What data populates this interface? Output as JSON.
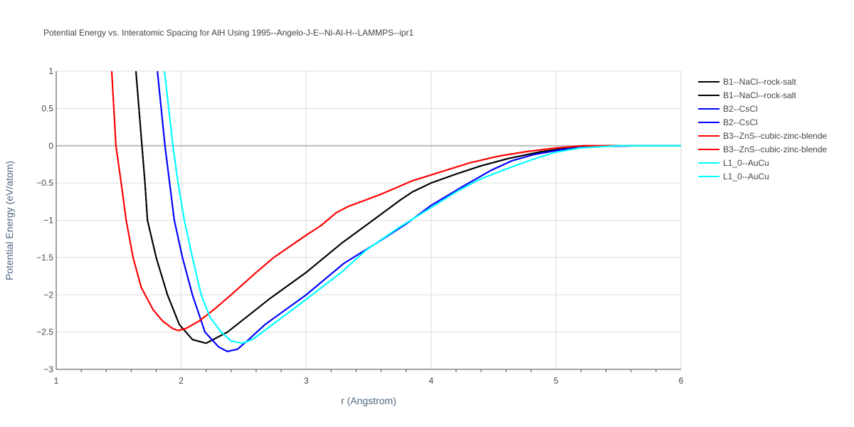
{
  "chart_data": {
    "type": "line",
    "title": "Potential Energy vs. Interatomic Spacing for AlH Using 1995--Angelo-J-E--Ni-Al-H--LAMMPS--ipr1",
    "xlabel": "r (Angstrom)",
    "ylabel": "Potential Energy (eV/atom)",
    "xlim": [
      1,
      6
    ],
    "ylim": [
      -3,
      1
    ],
    "xticks": [
      "1",
      "2",
      "3",
      "4",
      "5",
      "6"
    ],
    "yticks": [
      "1",
      "0.5",
      "0",
      "−0.5",
      "−1",
      "−1.5",
      "−2",
      "−2.5",
      "−3"
    ],
    "grid": true,
    "legend_placement": "right",
    "series": [
      {
        "name": "B1--NaCl--rock-salt",
        "color": "#000000",
        "x": [
          1.638,
          1.71,
          1.73,
          1.8,
          1.89,
          1.985,
          2.09,
          2.2,
          2.37,
          2.71,
          3.0,
          3.29,
          3.51,
          3.76,
          3.85,
          4.0,
          4.2,
          4.4,
          4.62,
          4.88,
          5.1,
          5.4,
          6.0
        ],
        "y": [
          1,
          -0.5,
          -1,
          -1.5,
          -2,
          -2.4,
          -2.6,
          -2.65,
          -2.5,
          -2.05,
          -1.7,
          -1.3,
          -1.03,
          -0.72,
          -0.62,
          -0.5,
          -0.38,
          -0.27,
          -0.17,
          -0.08,
          -0.03,
          0,
          0
        ]
      },
      {
        "name": "B1--NaCl--rock-salt",
        "color": "#000000",
        "x": [
          1.638,
          1.71,
          1.73,
          1.8,
          1.89,
          1.985,
          2.09,
          2.2,
          2.37,
          2.71,
          3.0,
          3.29,
          3.51,
          3.76,
          3.85,
          4.0,
          4.2,
          4.4,
          4.62,
          4.88,
          5.1,
          5.4,
          6.0
        ],
        "y": [
          1,
          -0.5,
          -1,
          -1.5,
          -2,
          -2.4,
          -2.6,
          -2.65,
          -2.5,
          -2.05,
          -1.7,
          -1.3,
          -1.03,
          -0.72,
          -0.62,
          -0.5,
          -0.38,
          -0.27,
          -0.17,
          -0.08,
          -0.03,
          0,
          0
        ]
      },
      {
        "name": "B2--CsCl",
        "color": "#0000ff",
        "x": [
          1.81,
          1.87,
          1.945,
          2.01,
          2.09,
          2.19,
          2.3,
          2.37,
          2.45,
          2.54,
          2.67,
          3.0,
          3.3,
          3.57,
          3.8,
          4.0,
          4.25,
          4.48,
          4.65,
          4.82,
          5.05,
          5.28,
          5.68,
          6.0
        ],
        "y": [
          1,
          0,
          -1,
          -1.5,
          -2,
          -2.5,
          -2.7,
          -2.76,
          -2.73,
          -2.6,
          -2.4,
          -2.0,
          -1.58,
          -1.3,
          -1.05,
          -0.8,
          -0.55,
          -0.33,
          -0.2,
          -0.12,
          -0.05,
          -0.01,
          0,
          0
        ]
      },
      {
        "name": "B2--CsCl",
        "color": "#0000ff",
        "x": [
          1.81,
          1.87,
          1.945,
          2.01,
          2.09,
          2.19,
          2.3,
          2.37,
          2.45,
          2.54,
          2.67,
          3.0,
          3.3,
          3.57,
          3.8,
          4.0,
          4.25,
          4.48,
          4.65,
          4.82,
          5.05,
          5.28,
          5.68,
          6.0
        ],
        "y": [
          1,
          0,
          -1,
          -1.5,
          -2,
          -2.5,
          -2.7,
          -2.76,
          -2.73,
          -2.6,
          -2.4,
          -2.0,
          -1.58,
          -1.3,
          -1.05,
          -0.8,
          -0.55,
          -0.33,
          -0.2,
          -0.12,
          -0.05,
          -0.01,
          0,
          0
        ]
      },
      {
        "name": "B3--ZnS--cubic-zinc-blende",
        "color": "#ff0000",
        "x": [
          1.444,
          1.478,
          1.52,
          1.56,
          1.615,
          1.68,
          1.775,
          1.85,
          1.93,
          1.975,
          2.04,
          2.145,
          2.26,
          2.4,
          2.6,
          2.74,
          3.0,
          3.12,
          3.24,
          3.33,
          3.6,
          3.85,
          4.08,
          4.31,
          4.54,
          4.76,
          5.0,
          5.22,
          6.0
        ],
        "y": [
          1,
          0,
          -0.5,
          -1,
          -1.5,
          -1.9,
          -2.2,
          -2.35,
          -2.45,
          -2.48,
          -2.45,
          -2.35,
          -2.2,
          -2.0,
          -1.7,
          -1.5,
          -1.2,
          -1.07,
          -0.9,
          -0.82,
          -0.65,
          -0.47,
          -0.35,
          -0.23,
          -0.14,
          -0.08,
          -0.03,
          0,
          0
        ]
      },
      {
        "name": "B3--ZnS--cubic-zinc-blende",
        "color": "#ff0000",
        "x": [
          1.444,
          1.478,
          1.52,
          1.56,
          1.615,
          1.68,
          1.775,
          1.85,
          1.93,
          1.975,
          2.04,
          2.145,
          2.26,
          2.4,
          2.6,
          2.74,
          3.0,
          3.12,
          3.24,
          3.33,
          3.6,
          3.85,
          4.08,
          4.31,
          4.54,
          4.76,
          5.0,
          5.22,
          6.0
        ],
        "y": [
          1,
          0,
          -0.5,
          -1,
          -1.5,
          -1.9,
          -2.2,
          -2.35,
          -2.45,
          -2.48,
          -2.45,
          -2.35,
          -2.2,
          -2.0,
          -1.7,
          -1.5,
          -1.2,
          -1.07,
          -0.9,
          -0.82,
          -0.65,
          -0.47,
          -0.35,
          -0.23,
          -0.14,
          -0.08,
          -0.03,
          0,
          0
        ]
      },
      {
        "name": "L1_0--AuCu",
        "color": "#00ffff",
        "x": [
          1.866,
          1.934,
          1.975,
          2.025,
          2.09,
          2.16,
          2.23,
          2.32,
          2.4,
          2.49,
          2.57,
          2.69,
          2.97,
          3.28,
          3.48,
          3.74,
          4.0,
          4.22,
          4.39,
          4.62,
          4.82,
          4.99,
          5.19,
          5.5,
          6.0
        ],
        "y": [
          1,
          0,
          -0.5,
          -1,
          -1.5,
          -2,
          -2.3,
          -2.5,
          -2.62,
          -2.65,
          -2.6,
          -2.45,
          -2.1,
          -1.7,
          -1.4,
          -1.1,
          -0.83,
          -0.6,
          -0.45,
          -0.3,
          -0.18,
          -0.09,
          -0.03,
          0,
          0
        ]
      },
      {
        "name": "L1_0--AuCu",
        "color": "#00ffff",
        "x": [
          1.866,
          1.934,
          1.975,
          2.025,
          2.09,
          2.16,
          2.23,
          2.32,
          2.4,
          2.49,
          2.57,
          2.69,
          2.97,
          3.28,
          3.48,
          3.74,
          4.0,
          4.22,
          4.39,
          4.62,
          4.82,
          4.99,
          5.19,
          5.5,
          6.0
        ],
        "y": [
          1,
          0,
          -0.5,
          -1,
          -1.5,
          -2,
          -2.3,
          -2.5,
          -2.62,
          -2.65,
          -2.6,
          -2.45,
          -2.1,
          -1.7,
          -1.4,
          -1.1,
          -0.83,
          -0.6,
          -0.45,
          -0.3,
          -0.18,
          -0.09,
          -0.03,
          0,
          0
        ]
      }
    ]
  }
}
